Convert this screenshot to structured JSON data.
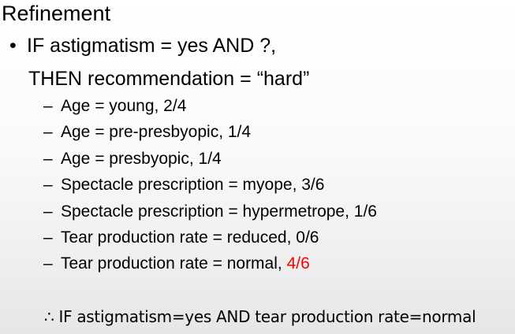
{
  "slide": {
    "title": "Refinement",
    "bullet": {
      "marker": "•",
      "line1": "IF astigmatism = yes AND ?,",
      "line2": "THEN recommendation = “hard”"
    },
    "sub_items": [
      {
        "marker": "–",
        "text": "Age = young,  2/4",
        "highlight": ""
      },
      {
        "marker": "–",
        "text": "Age = pre-presbyopic, 1/4",
        "highlight": ""
      },
      {
        "marker": "–",
        "text": "Age = presbyopic, 1/4",
        "highlight": ""
      },
      {
        "marker": "–",
        "text": "Spectacle prescription = myope, 3/6",
        "highlight": ""
      },
      {
        "marker": "–",
        "text": "Spectacle prescription = hypermetrope, 1/6",
        "highlight": ""
      },
      {
        "marker": "–",
        "text": "Tear production rate = reduced, 0/6",
        "highlight": ""
      },
      {
        "marker": "–",
        "text": "Tear production rate = normal, ",
        "highlight": "4/6"
      }
    ],
    "conclusion": "∴ IF astigmatism=yes AND tear production rate=normal",
    "colors": {
      "highlight": "#ff0000",
      "text": "#000000"
    }
  }
}
